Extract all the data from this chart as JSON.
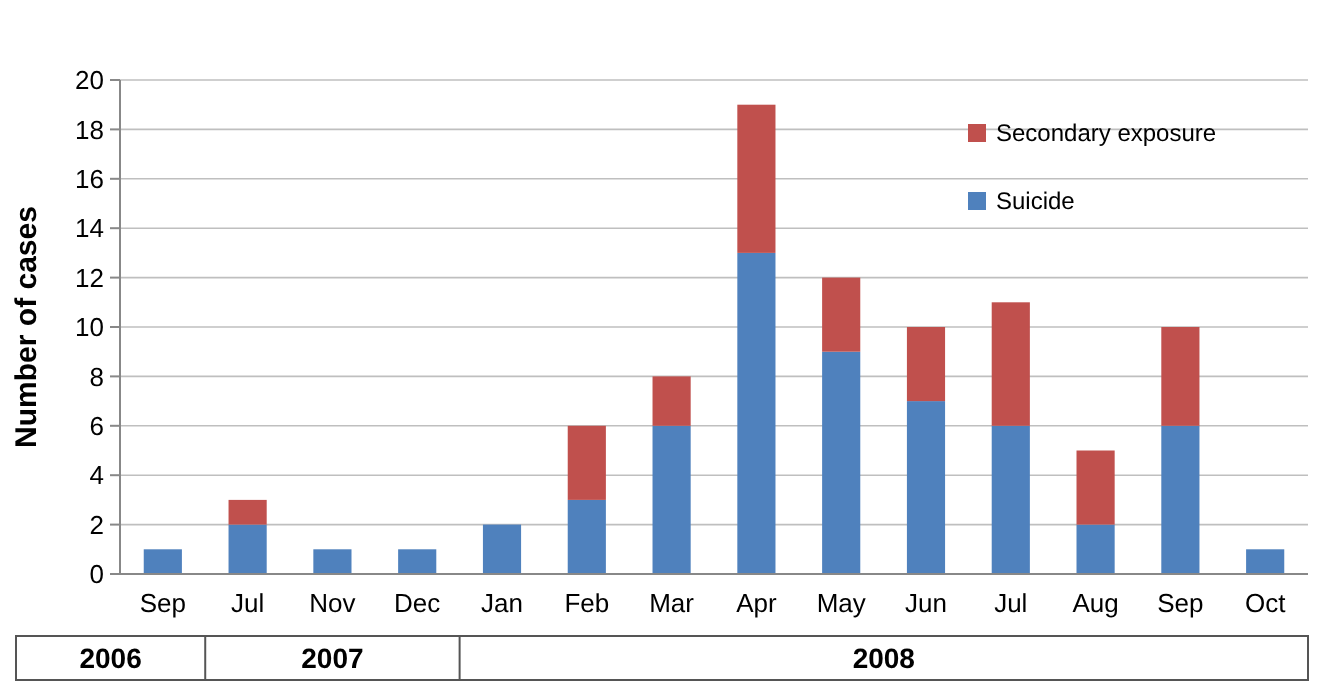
{
  "chart_data": {
    "type": "bar",
    "stacked": true,
    "ylabel": "Number of cases",
    "categories": [
      "Sep",
      "Jul",
      "Nov",
      "Dec",
      "Jan",
      "Feb",
      "Mar",
      "Apr",
      "May",
      "Jun",
      "Jul",
      "Aug",
      "Sep",
      "Oct"
    ],
    "series": [
      {
        "name": "Suicide",
        "color": "#4f81bd",
        "values": [
          1,
          2,
          1,
          1,
          2,
          3,
          6,
          13,
          9,
          7,
          6,
          2,
          6,
          1
        ]
      },
      {
        "name": "Secondary exposure",
        "color": "#c0504d",
        "values": [
          0,
          1,
          0,
          0,
          0,
          3,
          2,
          6,
          3,
          3,
          5,
          3,
          4,
          0
        ]
      }
    ],
    "ylim": [
      0,
      20
    ],
    "yticks": [
      0,
      2,
      4,
      6,
      8,
      10,
      12,
      14,
      16,
      18,
      20
    ],
    "grid": "y",
    "legend": "top right",
    "annotations": [
      "2006",
      "2007",
      "2008"
    ]
  }
}
